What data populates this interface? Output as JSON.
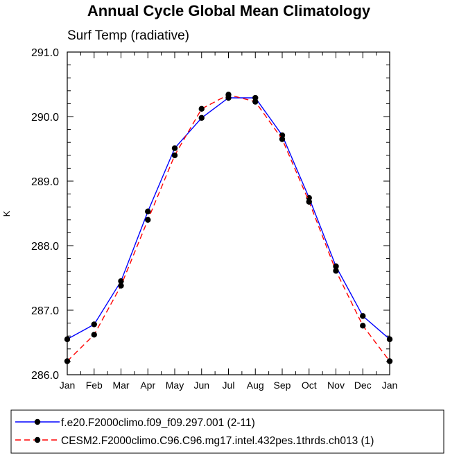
{
  "chart_data": {
    "type": "line",
    "title": "Annual Cycle Global Mean Climatology",
    "subtitle": "Surf Temp (radiative)",
    "ylabel": "K",
    "xlabel": "",
    "categories": [
      "Jan",
      "Feb",
      "Mar",
      "Apr",
      "May",
      "Jun",
      "Jul",
      "Aug",
      "Sep",
      "Oct",
      "Nov",
      "Dec",
      "Jan"
    ],
    "ylim": [
      286.0,
      291.0
    ],
    "yticks": [
      "286.0",
      "287.0",
      "288.0",
      "289.0",
      "290.0",
      "291.0"
    ],
    "grid": false,
    "legend_position": "bottom",
    "series": [
      {
        "name": "f.e20.F2000climo.f09_f09.297.001 (2-11)",
        "color": "#0000ff",
        "line_style": "solid",
        "marker": "filled-circle",
        "values": [
          286.55,
          286.78,
          287.45,
          288.53,
          289.51,
          289.98,
          290.29,
          290.29,
          289.71,
          288.74,
          287.68,
          286.91,
          286.55
        ]
      },
      {
        "name": "CESM2.F2000climo.C96.C96.mg17.intel.432pes.1thrds.ch013 (1)",
        "color": "#ff0000",
        "line_style": "dashed",
        "marker": "filled-circle",
        "values": [
          286.21,
          286.62,
          287.38,
          288.4,
          289.4,
          290.12,
          290.34,
          290.23,
          289.65,
          288.68,
          287.61,
          286.76,
          286.21
        ]
      }
    ]
  }
}
